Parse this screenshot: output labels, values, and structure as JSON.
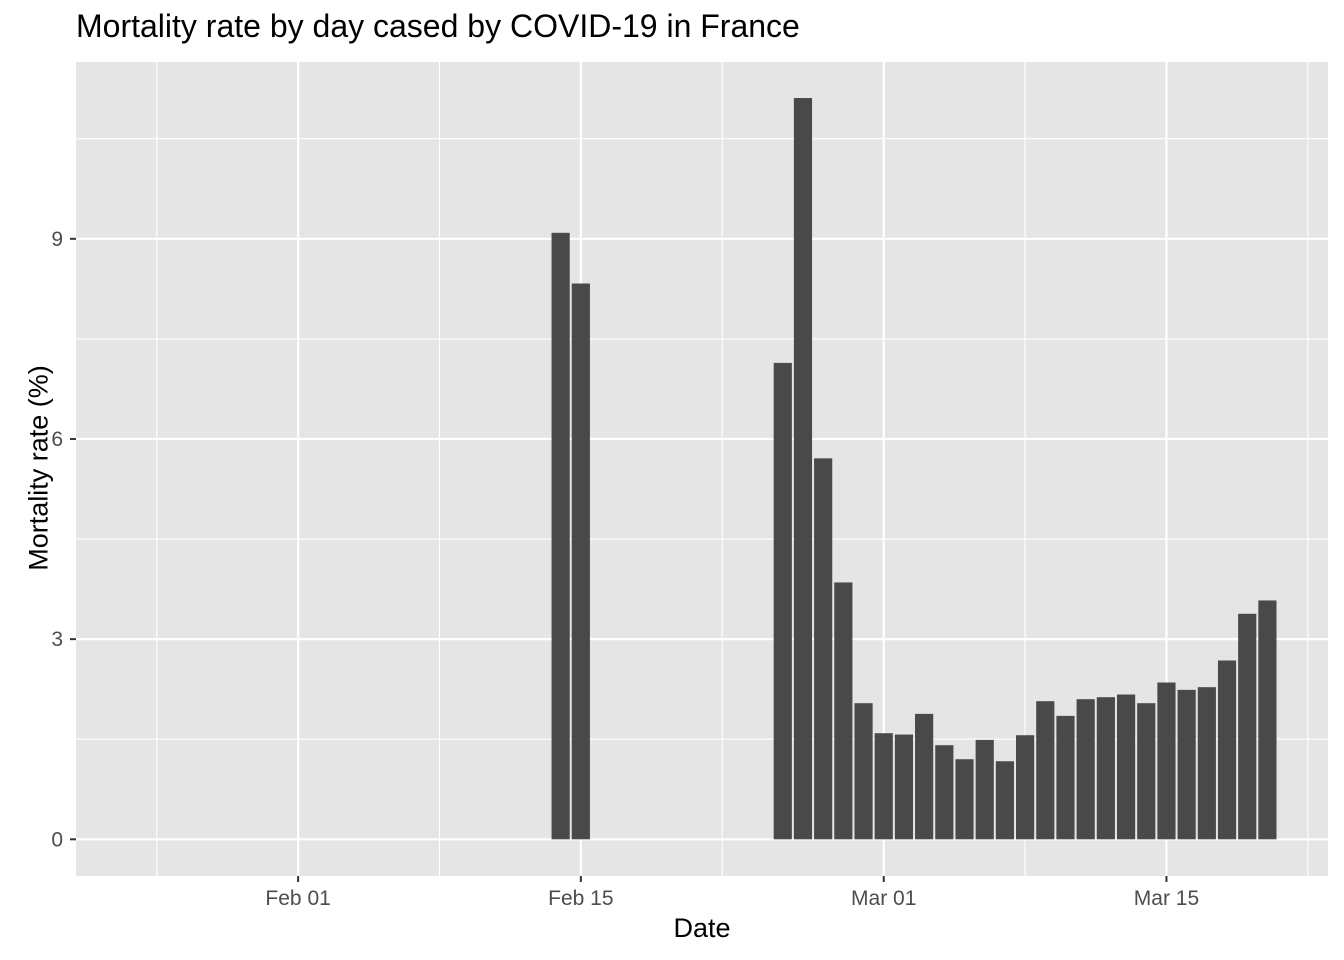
{
  "chart_data": {
    "type": "bar",
    "title": "Mortality rate by day cased by COVID-19 in France",
    "xlabel": "Date",
    "ylabel": "Mortality rate (%)",
    "x_tick_labels": [
      "Feb 01",
      "Feb 15",
      "Mar 01",
      "Mar 15"
    ],
    "x_tick_dates": [
      "2020-02-01",
      "2020-02-15",
      "2020-03-01",
      "2020-03-15"
    ],
    "y_tick_labels": [
      "0",
      "3",
      "6",
      "9"
    ],
    "y_ticks": [
      0,
      3,
      6,
      9
    ],
    "xlim": [
      "2020-01-21",
      "2020-03-23"
    ],
    "ylim": [
      -0.55,
      11.65
    ],
    "grid": true,
    "bar_color": "#494949",
    "panel_background": "#e5e5e5",
    "dates": [
      "2020-02-14",
      "2020-02-15",
      "2020-02-25",
      "2020-02-26",
      "2020-02-27",
      "2020-02-28",
      "2020-02-29",
      "2020-03-01",
      "2020-03-02",
      "2020-03-03",
      "2020-03-04",
      "2020-03-05",
      "2020-03-06",
      "2020-03-07",
      "2020-03-08",
      "2020-03-09",
      "2020-03-10",
      "2020-03-11",
      "2020-03-12",
      "2020-03-13",
      "2020-03-14",
      "2020-03-15",
      "2020-03-16",
      "2020-03-17",
      "2020-03-18",
      "2020-03-19",
      "2020-03-20"
    ],
    "values": [
      9.09,
      8.33,
      7.14,
      11.11,
      5.71,
      3.85,
      2.04,
      1.59,
      1.57,
      1.88,
      1.41,
      1.2,
      1.49,
      1.17,
      1.56,
      2.07,
      1.85,
      2.1,
      2.13,
      2.17,
      2.04,
      2.35,
      2.24,
      2.28,
      2.68,
      3.38,
      3.58
    ]
  }
}
